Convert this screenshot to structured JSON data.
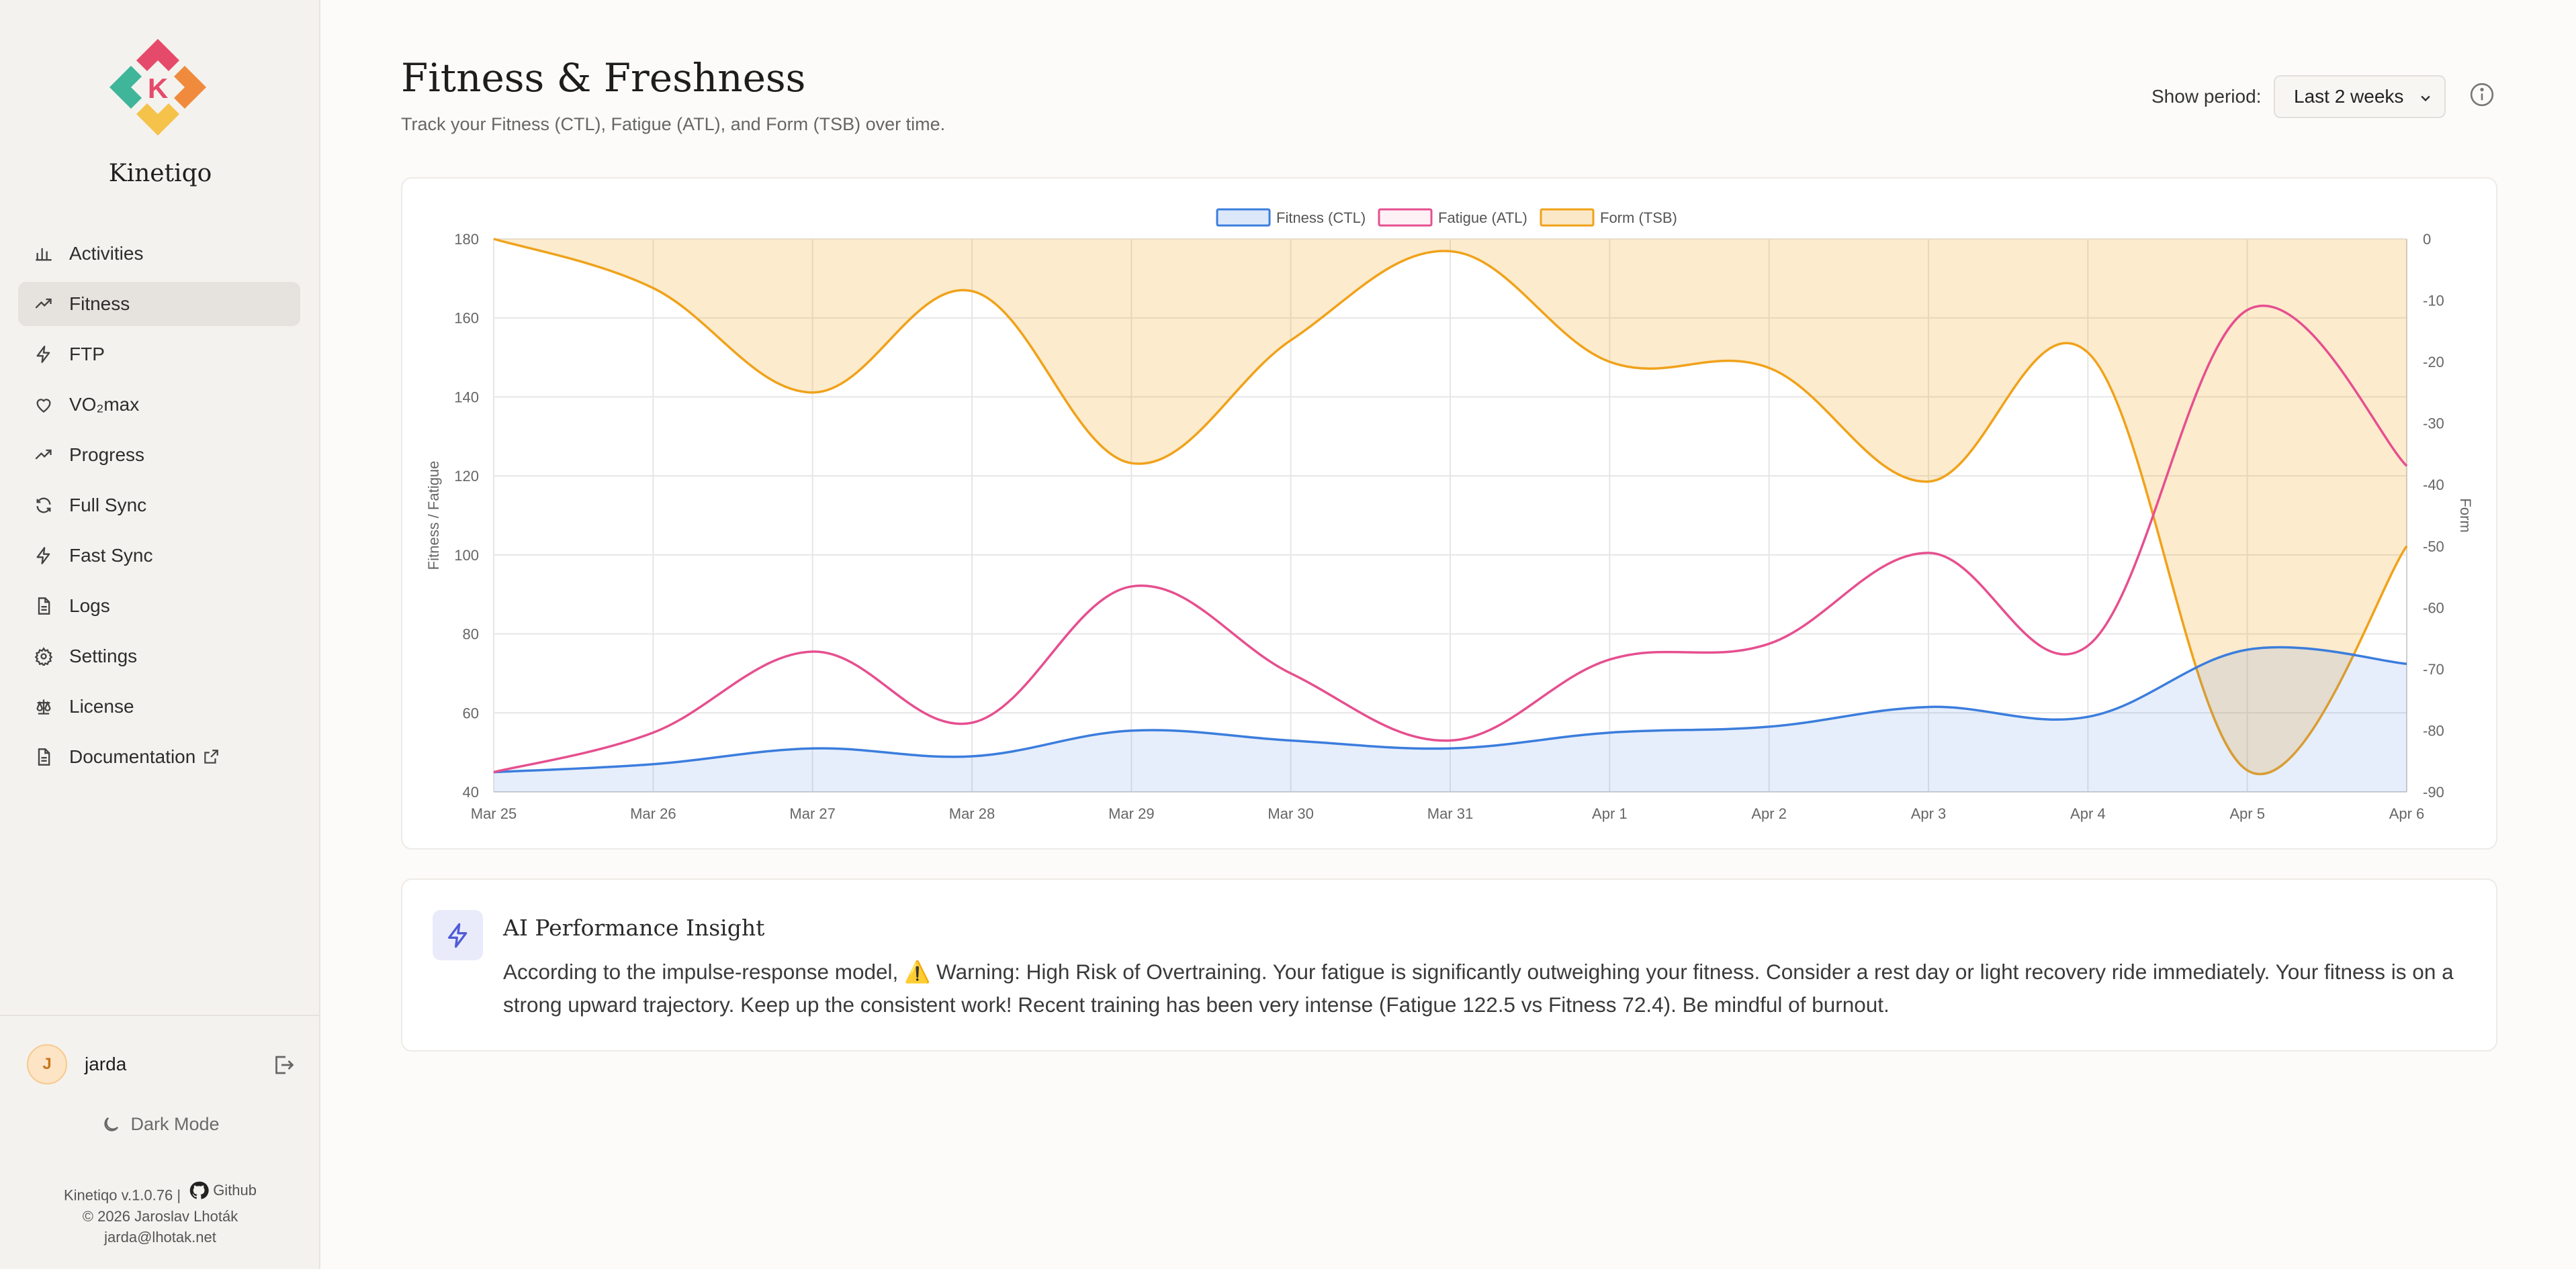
{
  "brand": {
    "name": "Kinetiqo",
    "logo_letter": "K"
  },
  "sidebar": {
    "items": [
      {
        "label": "Activities",
        "icon": "bar-chart-icon",
        "active": false
      },
      {
        "label": "Fitness",
        "icon": "trending-up-icon",
        "active": true
      },
      {
        "label": "FTP",
        "icon": "lightning-icon",
        "active": false
      },
      {
        "label": "VO₂max",
        "icon": "heart-icon",
        "active": false
      },
      {
        "label": "Progress",
        "icon": "trending-up-icon",
        "active": false
      },
      {
        "label": "Full Sync",
        "icon": "refresh-icon",
        "active": false
      },
      {
        "label": "Fast Sync",
        "icon": "lightning-icon",
        "active": false
      },
      {
        "label": "Logs",
        "icon": "document-icon",
        "active": false
      },
      {
        "label": "Settings",
        "icon": "gear-icon",
        "active": false
      },
      {
        "label": "License",
        "icon": "scale-icon",
        "active": false
      },
      {
        "label": "Documentation",
        "icon": "document-icon",
        "active": false,
        "external": true
      }
    ],
    "user": {
      "initial": "J",
      "name": "jarda"
    },
    "dark_mode_label": "Dark Mode",
    "footer": {
      "version": "Kinetiqo v.1.0.76 |",
      "github": "Github",
      "copyright": "© 2026 Jaroslav Lhoták",
      "email": "jarda@lhotak.net"
    }
  },
  "header": {
    "title": "Fitness & Freshness",
    "subtitle": "Track your Fitness (CTL), Fatigue (ATL), and Form (TSB) over time.",
    "period_label": "Show period:",
    "period_value": "Last 2 weeks"
  },
  "insight": {
    "title": "AI Performance Insight",
    "text": "According to the impulse-response model, ⚠️ Warning: High Risk of Overtraining. Your fatigue is significantly outweighing your fitness. Consider a rest day or light recovery ride immediately. Your fitness is on a strong upward trajectory. Keep up the consistent work! Recent training has been very intense (Fatigue 122.5 vs Fitness 72.4). Be mindful of burnout."
  },
  "colors": {
    "fitness": "#3b7ddd",
    "fatigue": "#e64f8f",
    "form": "#f0a21a",
    "accent": "#4f5bd5"
  },
  "chart_data": {
    "type": "line",
    "x": [
      "Mar 25",
      "Mar 26",
      "Mar 27",
      "Mar 28",
      "Mar 29",
      "Mar 30",
      "Mar 31",
      "Apr 1",
      "Apr 2",
      "Apr 3",
      "Apr 4",
      "Apr 5",
      "Apr 6"
    ],
    "series": [
      {
        "name": "Fitness (CTL)",
        "axis": "left",
        "fill": true,
        "values": [
          45,
          47,
          51,
          49,
          55.5,
          53,
          51,
          55,
          56.5,
          61.5,
          59,
          76,
          72.4
        ]
      },
      {
        "name": "Fatigue (ATL)",
        "axis": "left",
        "fill": false,
        "values": [
          45,
          55,
          75.5,
          57.5,
          92,
          70,
          53,
          73.5,
          77.5,
          100.5,
          77,
          162,
          122.5
        ]
      },
      {
        "name": "Form (TSB)",
        "axis": "right",
        "fill": true,
        "values": [
          0,
          -8,
          -25,
          -8.5,
          -36.5,
          -16.5,
          -2,
          -20,
          -21,
          -39.5,
          -18.5,
          -86.5,
          -50
        ]
      }
    ],
    "ylabel": "Fitness / Fatigue",
    "y2label": "Form",
    "ylim": [
      40,
      180
    ],
    "y2lim": [
      -90,
      0
    ],
    "yticks": [
      40,
      60,
      80,
      100,
      120,
      140,
      160,
      180
    ],
    "y2ticks": [
      0,
      -10,
      -20,
      -30,
      -40,
      -50,
      -60,
      -70,
      -80,
      -90
    ],
    "legend": "top-center",
    "grid": true
  }
}
